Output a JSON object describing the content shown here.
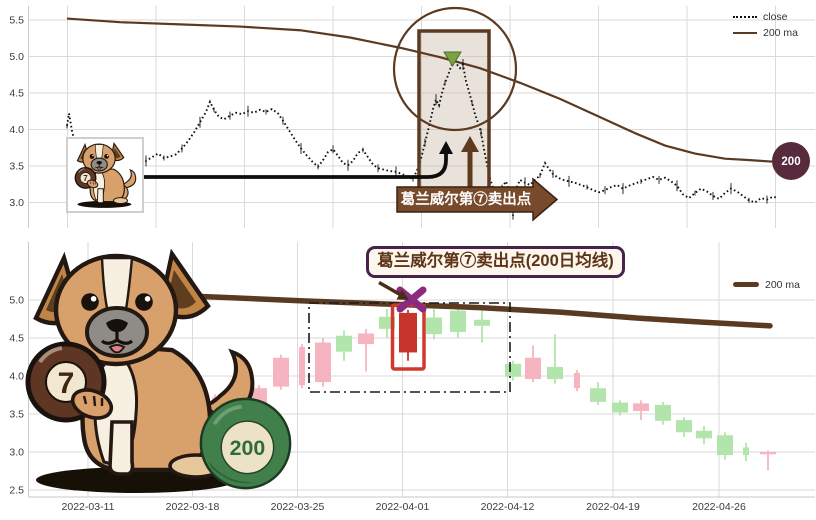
{
  "decor": {
    "ball7_label": "7",
    "ball200_label": "200"
  },
  "chart_data": [
    {
      "id": "top_panel",
      "type": "line",
      "title": "",
      "grid": true,
      "ylim": [
        2.75,
        5.65
      ],
      "y_ticks": [
        "5.5",
        "5.0",
        "4.5",
        "4.0",
        "3.5",
        "3.0"
      ],
      "y_tick_values": [
        5.5,
        5.0,
        4.5,
        4.0,
        3.5,
        3.0
      ],
      "legend": {
        "position": "top-right",
        "entries": [
          {
            "label": "close",
            "style": "dotted",
            "color": "#111111"
          },
          {
            "label": "200 ma",
            "style": "solid",
            "color": "#5b3a22"
          }
        ]
      },
      "annotations": {
        "sell_point_label": "葛兰威尔第⑦卖出点",
        "badge_label": "200",
        "highlight": "brown circle and box around the peak with green down-triangle sell marker"
      },
      "series": [
        {
          "name": "close",
          "style": "dotted",
          "color": "#101010",
          "points": [
            [
              67,
              4.05
            ],
            [
              69,
              4.22
            ],
            [
              72,
              3.98
            ],
            [
              76,
              3.75
            ],
            [
              81,
              3.58
            ],
            [
              86,
              3.62
            ],
            [
              92,
              3.55
            ],
            [
              98,
              3.6
            ],
            [
              104,
              3.53
            ],
            [
              110,
              3.56
            ],
            [
              116,
              3.52
            ],
            [
              122,
              3.57
            ],
            [
              128,
              3.53
            ],
            [
              134,
              3.56
            ],
            [
              140,
              3.59
            ],
            [
              146,
              3.57
            ],
            [
              152,
              3.62
            ],
            [
              158,
              3.67
            ],
            [
              164,
              3.61
            ],
            [
              170,
              3.63
            ],
            [
              176,
              3.66
            ],
            [
              182,
              3.74
            ],
            [
              188,
              3.84
            ],
            [
              194,
              3.96
            ],
            [
              200,
              4.1
            ],
            [
              206,
              4.24
            ],
            [
              210,
              4.38
            ],
            [
              214,
              4.27
            ],
            [
              219,
              4.17
            ],
            [
              224,
              4.14
            ],
            [
              230,
              4.19
            ],
            [
              236,
              4.23
            ],
            [
              242,
              4.21
            ],
            [
              248,
              4.25
            ],
            [
              254,
              4.23
            ],
            [
              260,
              4.27
            ],
            [
              266,
              4.24
            ],
            [
              272,
              4.28
            ],
            [
              278,
              4.22
            ],
            [
              283,
              4.12
            ],
            [
              289,
              3.99
            ],
            [
              295,
              3.86
            ],
            [
              301,
              3.74
            ],
            [
              307,
              3.64
            ],
            [
              313,
              3.55
            ],
            [
              318,
              3.49
            ],
            [
              323,
              3.58
            ],
            [
              328,
              3.69
            ],
            [
              333,
              3.73
            ],
            [
              338,
              3.64
            ],
            [
              343,
              3.54
            ],
            [
              348,
              3.51
            ],
            [
              353,
              3.57
            ],
            [
              358,
              3.68
            ],
            [
              363,
              3.72
            ],
            [
              368,
              3.62
            ],
            [
              373,
              3.52
            ],
            [
              378,
              3.47
            ],
            [
              384,
              3.45
            ],
            [
              390,
              3.43
            ],
            [
              396,
              3.42
            ],
            [
              402,
              3.39
            ],
            [
              408,
              3.35
            ],
            [
              413,
              3.32
            ],
            [
              417,
              3.44
            ],
            [
              421,
              3.6
            ],
            [
              425,
              3.82
            ],
            [
              429,
              4.04
            ],
            [
              433,
              4.28
            ],
            [
              436,
              4.41
            ],
            [
              439,
              4.33
            ],
            [
              442,
              4.5
            ],
            [
              445,
              4.64
            ],
            [
              448,
              4.74
            ],
            [
              451,
              4.86
            ],
            [
              454,
              4.96
            ],
            [
              457,
              4.89
            ],
            [
              460,
              4.84
            ],
            [
              463,
              4.89
            ],
            [
              466,
              4.66
            ],
            [
              469,
              4.52
            ],
            [
              472,
              4.37
            ],
            [
              475,
              4.21
            ],
            [
              478,
              4.09
            ],
            [
              481,
              3.96
            ],
            [
              484,
              3.73
            ],
            [
              487,
              3.52
            ],
            [
              490,
              3.33
            ],
            [
              494,
              3.16
            ],
            [
              498,
              3.09
            ],
            [
              502,
              3.21
            ],
            [
              506,
              3.29
            ],
            [
              510,
              3.12
            ],
            [
              513,
              2.82
            ],
            [
              516,
              3.18
            ],
            [
              520,
              3.31
            ],
            [
              525,
              3.27
            ],
            [
              530,
              3.24
            ],
            [
              535,
              3.31
            ],
            [
              540,
              3.37
            ],
            [
              545,
              3.54
            ],
            [
              549,
              3.46
            ],
            [
              553,
              3.39
            ],
            [
              558,
              3.34
            ],
            [
              563,
              3.31
            ],
            [
              569,
              3.29
            ],
            [
              575,
              3.27
            ],
            [
              581,
              3.24
            ],
            [
              587,
              3.21
            ],
            [
              593,
              3.17
            ],
            [
              599,
              3.14
            ],
            [
              605,
              3.17
            ],
            [
              611,
              3.21
            ],
            [
              617,
              3.24
            ],
            [
              623,
              3.19
            ],
            [
              629,
              3.23
            ],
            [
              635,
              3.26
            ],
            [
              641,
              3.29
            ],
            [
              647,
              3.32
            ],
            [
              653,
              3.35
            ],
            [
              659,
              3.31
            ],
            [
              665,
              3.34
            ],
            [
              671,
              3.29
            ],
            [
              677,
              3.23
            ],
            [
              683,
              3.11
            ],
            [
              689,
              3.06
            ],
            [
              695,
              3.13
            ],
            [
              701,
              3.19
            ],
            [
              707,
              3.15
            ],
            [
              713,
              3.09
            ],
            [
              719,
              3.05
            ],
            [
              725,
              3.13
            ],
            [
              731,
              3.19
            ],
            [
              737,
              3.15
            ],
            [
              743,
              3.09
            ],
            [
              749,
              3.03
            ],
            [
              755,
              3.0
            ],
            [
              761,
              3.06
            ],
            [
              767,
              3.04
            ],
            [
              773,
              3.08
            ],
            [
              778,
              3.06
            ]
          ]
        },
        {
          "name": "200 ma",
          "style": "solid",
          "color": "#5b3a22",
          "points": [
            [
              67,
              5.52
            ],
            [
              120,
              5.47
            ],
            [
              180,
              5.44
            ],
            [
              240,
              5.41
            ],
            [
              300,
              5.36
            ],
            [
              350,
              5.26
            ],
            [
              400,
              5.12
            ],
            [
              440,
              4.99
            ],
            [
              480,
              4.84
            ],
            [
              520,
              4.64
            ],
            [
              560,
              4.42
            ],
            [
              600,
              4.17
            ],
            [
              635,
              3.95
            ],
            [
              665,
              3.78
            ],
            [
              695,
              3.67
            ],
            [
              725,
              3.6
            ],
            [
              750,
              3.58
            ],
            [
              772,
              3.56
            ]
          ]
        }
      ]
    },
    {
      "id": "bottom_panel",
      "type": "candlestick",
      "grid": true,
      "ylim": [
        2.45,
        5.35
      ],
      "x_ticks": [
        "2022-03-11",
        "2022-03-18",
        "2022-03-25",
        "2022-04-01",
        "2022-04-12",
        "2022-04-19",
        "2022-04-26"
      ],
      "y_ticks": [
        "5.0",
        "4.5",
        "4.0",
        "3.5",
        "3.0",
        "2.5"
      ],
      "y_tick_values": [
        5.0,
        4.5,
        4.0,
        3.5,
        3.0,
        2.5
      ],
      "up_color": "#b2e5ab",
      "down_color": "#f6b4c0",
      "sell_color": "#c5352c",
      "legend": {
        "position": "top-right",
        "entries": [
          {
            "label": "200 ma",
            "style": "thick",
            "color": "#5b3a22"
          }
        ]
      },
      "annotations": {
        "sell_point_label": "葛兰威尔第⑦卖出点(200日均线)",
        "marker": "purple X on the 200 ma line above the highlighted red candle"
      },
      "candles": [
        {
          "x": 215,
          "o": 3.72,
          "h": 3.76,
          "l": 3.58,
          "c": 3.63,
          "k": "down",
          "w": 6
        },
        {
          "x": 259,
          "o": 3.84,
          "h": 3.88,
          "l": 3.58,
          "c": 3.62,
          "k": "down"
        },
        {
          "x": 281,
          "o": 4.24,
          "h": 4.28,
          "l": 3.82,
          "c": 3.86,
          "k": "down"
        },
        {
          "x": 302,
          "o": 4.38,
          "h": 4.42,
          "l": 3.84,
          "c": 3.88,
          "k": "down",
          "w": 6
        },
        {
          "x": 323,
          "o": 4.44,
          "h": 4.5,
          "l": 3.86,
          "c": 3.92,
          "k": "down"
        },
        {
          "x": 344,
          "o": 4.32,
          "h": 4.6,
          "l": 4.2,
          "c": 4.53,
          "k": "up"
        },
        {
          "x": 366,
          "o": 4.56,
          "h": 4.62,
          "l": 4.06,
          "c": 4.42,
          "k": "down"
        },
        {
          "x": 387,
          "o": 4.62,
          "h": 4.88,
          "l": 4.5,
          "c": 4.78,
          "k": "up"
        },
        {
          "x": 408,
          "o": 4.83,
          "h": 4.87,
          "l": 4.2,
          "c": 4.31,
          "k": "sell",
          "w": 18
        },
        {
          "x": 434,
          "o": 4.55,
          "h": 4.88,
          "l": 4.48,
          "c": 4.77,
          "k": "up"
        },
        {
          "x": 458,
          "o": 4.58,
          "h": 4.92,
          "l": 4.5,
          "c": 4.86,
          "k": "up"
        },
        {
          "x": 482,
          "o": 4.66,
          "h": 4.9,
          "l": 4.44,
          "c": 4.74,
          "k": "up"
        },
        {
          "x": 513,
          "o": 3.99,
          "h": 4.2,
          "l": 3.94,
          "c": 4.16,
          "k": "up"
        },
        {
          "x": 533,
          "o": 4.24,
          "h": 4.4,
          "l": 3.92,
          "c": 3.96,
          "k": "down"
        },
        {
          "x": 555,
          "o": 3.96,
          "h": 4.55,
          "l": 3.9,
          "c": 4.12,
          "k": "up"
        },
        {
          "x": 577,
          "o": 4.04,
          "h": 4.08,
          "l": 3.8,
          "c": 3.84,
          "k": "down",
          "w": 6
        },
        {
          "x": 598,
          "o": 3.66,
          "h": 3.92,
          "l": 3.62,
          "c": 3.84,
          "k": "up"
        },
        {
          "x": 620,
          "o": 3.52,
          "h": 3.68,
          "l": 3.48,
          "c": 3.65,
          "k": "up"
        },
        {
          "x": 641,
          "o": 3.64,
          "h": 3.68,
          "l": 3.42,
          "c": 3.54,
          "k": "down"
        },
        {
          "x": 663,
          "o": 3.41,
          "h": 3.66,
          "l": 3.36,
          "c": 3.62,
          "k": "up"
        },
        {
          "x": 684,
          "o": 3.26,
          "h": 3.46,
          "l": 3.2,
          "c": 3.42,
          "k": "up"
        },
        {
          "x": 704,
          "o": 3.18,
          "h": 3.34,
          "l": 3.1,
          "c": 3.28,
          "k": "up"
        },
        {
          "x": 725,
          "o": 2.96,
          "h": 3.26,
          "l": 2.9,
          "c": 3.22,
          "k": "up"
        },
        {
          "x": 746,
          "o": 2.96,
          "h": 3.12,
          "l": 2.88,
          "c": 3.06,
          "k": "up",
          "w": 6
        },
        {
          "x": 768,
          "o": 3.0,
          "h": 3.02,
          "l": 2.76,
          "c": 2.97,
          "k": "down"
        }
      ],
      "ma": {
        "name": "200 ma",
        "color": "#5b3a22",
        "points": [
          [
            196,
            5.05
          ],
          [
            300,
            4.99
          ],
          [
            400,
            4.94
          ],
          [
            480,
            4.9
          ],
          [
            560,
            4.84
          ],
          [
            640,
            4.76
          ],
          [
            700,
            4.71
          ],
          [
            770,
            4.66
          ]
        ]
      }
    }
  ]
}
